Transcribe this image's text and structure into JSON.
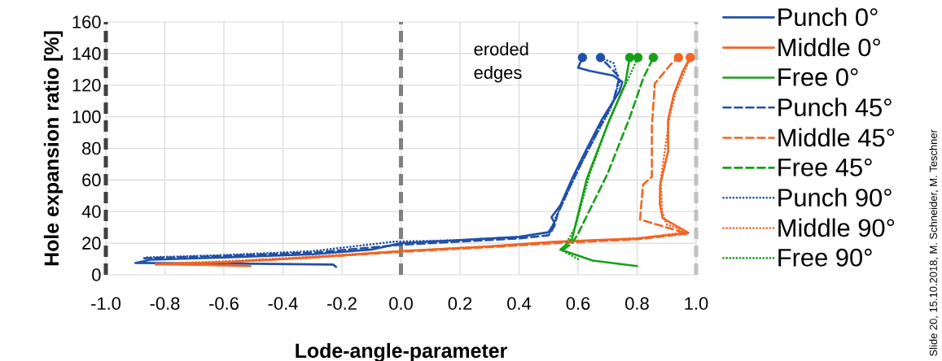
{
  "chart_data": {
    "type": "line",
    "xlabel": "Lode-angle-parameter",
    "ylabel": "Hole expansion ratio [%]",
    "xlim": [
      -1,
      1
    ],
    "ylim": [
      0,
      160
    ],
    "xticks": [
      {
        "value": -1,
        "label": "-1.0"
      },
      -0.8,
      -0.6,
      -0.4,
      -0.2,
      {
        "value": 0,
        "label": "0.0"
      },
      0.2,
      0.4,
      0.6,
      0.8,
      {
        "value": 1,
        "label": "1.0"
      }
    ],
    "yticks": [
      0,
      20,
      40,
      60,
      80,
      100,
      120,
      140,
      160
    ],
    "grid": true,
    "legend": "right",
    "marker": "none",
    "ref_lines": [
      {
        "axis": "x",
        "value": -1,
        "color": "#404040",
        "line_style": "dashed"
      },
      {
        "axis": "x",
        "value": 0,
        "color": "#808080",
        "line_style": "dashed"
      },
      {
        "axis": "x",
        "value": 1,
        "color": "#c0c0c0",
        "line_style": "dashed"
      }
    ],
    "annotations": [
      "eroded edges",
      "Slide 20, 15.10.2018, M. Schneider, M. Teschner"
    ],
    "series": [
      {
        "name": "Punch 0°",
        "color": "#2050a8",
        "line_style": "solid",
        "x": [
          -0.22,
          -0.23,
          -0.5,
          -0.9,
          -0.85,
          -0.6,
          -0.3,
          -0.1,
          0.0,
          0.2,
          0.4,
          0.5,
          0.52,
          0.51,
          0.54,
          0.58,
          0.63,
          0.68,
          0.74,
          0.75,
          0.72,
          0.64,
          0.6,
          0.615
        ],
        "values": [
          5,
          6.5,
          7,
          7.5,
          9.5,
          11,
          13,
          16,
          20,
          22,
          24,
          27,
          33,
          36.5,
          44,
          61,
          80,
          98,
          116,
          122,
          126,
          129,
          131,
          137.5
        ]
      },
      {
        "name": "Middle 0°",
        "color": "#f26522",
        "line_style": "solid",
        "x": [
          -0.51,
          -0.6,
          -0.83,
          -0.6,
          -0.3,
          0,
          0.3,
          0.52,
          0.8,
          0.974,
          0.886,
          0.877,
          0.878,
          0.905,
          0.905,
          0.924,
          0.955,
          0.98
        ],
        "values": [
          5.5,
          6,
          6.7,
          8,
          11,
          15,
          18,
          21,
          23,
          26.5,
          36,
          45,
          57,
          78,
          98,
          114,
          129,
          137.5
        ]
      },
      {
        "name": "Free 0°",
        "color": "#17a017",
        "line_style": "solid",
        "x": [
          0.8,
          0.65,
          0.54,
          0.56,
          0.58,
          0.63,
          0.7,
          0.76,
          0.775
        ],
        "values": [
          5.5,
          9,
          16,
          19,
          23,
          61,
          95,
          121,
          137.5
        ]
      },
      {
        "name": "Punch 45°",
        "color": "#2050a8",
        "line_style": "dashed",
        "x": [
          -0.87,
          -0.6,
          -0.3,
          0,
          0.2,
          0.4,
          0.5,
          0.52,
          0.53,
          0.57,
          0.62,
          0.67,
          0.72,
          0.74,
          0.7,
          0.676
        ],
        "values": [
          10.5,
          12,
          14,
          19,
          21,
          23,
          25,
          31,
          38,
          55,
          74,
          92,
          110,
          125,
          133,
          137.5
        ]
      },
      {
        "name": "Middle 45°",
        "color": "#f26522",
        "line_style": "dashed",
        "x": [
          -0.83,
          -0.6,
          -0.3,
          0,
          0.3,
          0.52,
          0.8,
          0.97,
          0.9,
          0.81,
          0.82,
          0.85,
          0.85,
          0.86,
          0.913,
          0.94
        ],
        "values": [
          6.5,
          8,
          11,
          14.5,
          17.5,
          20,
          22.5,
          26,
          30,
          35,
          57,
          62,
          94,
          121,
          133,
          137.5
        ]
      },
      {
        "name": "Free 45°",
        "color": "#17a017",
        "line_style": "dashed",
        "x": [
          0.55,
          0.58,
          0.6,
          0.7,
          0.776,
          0.82,
          0.855
        ],
        "values": [
          16,
          20,
          26,
          64,
          100,
          124,
          137.5
        ]
      },
      {
        "name": "Punch 90°",
        "color": "#2050a8",
        "line_style": "dotted",
        "x": [
          -0.86,
          -0.6,
          -0.3,
          -0.02,
          0.2,
          0.4,
          0.51,
          0.52,
          0.56,
          0.61,
          0.66,
          0.71,
          0.74,
          0.72,
          0.676
        ],
        "values": [
          11,
          12.5,
          15,
          21,
          22,
          24,
          27,
          35,
          50,
          70,
          88,
          105,
          122,
          134,
          137.5
        ]
      },
      {
        "name": "Middle 90°",
        "color": "#f26522",
        "line_style": "dotted",
        "x": [
          -0.83,
          -0.6,
          -0.3,
          0,
          0.3,
          0.52,
          0.8,
          0.97,
          0.9,
          0.885,
          0.88,
          0.895,
          0.91,
          0.93,
          0.96,
          0.98
        ],
        "values": [
          7,
          8.5,
          11.5,
          15,
          18,
          20.5,
          23,
          27,
          32,
          40,
          60,
          80,
          100,
          115,
          128,
          137.5
        ]
      },
      {
        "name": "Free 90°",
        "color": "#17a017",
        "line_style": "dotted",
        "x": [
          0.6,
          0.55,
          0.56,
          0.59,
          0.64,
          0.71,
          0.77,
          0.803
        ],
        "values": [
          10,
          15,
          20,
          30,
          64,
          100,
          124,
          137.5
        ]
      },
      {
        "type": "scatter",
        "marker": "circle",
        "colors": [
          "#2050a8",
          "#2050a8",
          "#17a017",
          "#17a017",
          "#17a017",
          "#f26522",
          "#f26522"
        ],
        "x": [
          0.615,
          0.676,
          0.775,
          0.803,
          0.855,
          0.94,
          0.98
        ],
        "values": [
          137.5,
          137.5,
          137.5,
          137.5,
          137.5,
          137.5,
          137.5
        ]
      }
    ]
  }
}
